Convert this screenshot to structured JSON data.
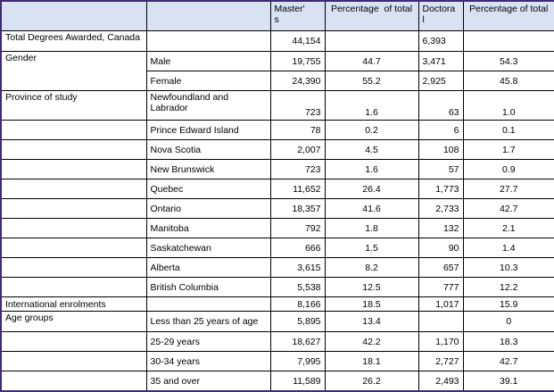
{
  "header": {
    "masters": "Master'\ns",
    "pct1": "Percentage  of total",
    "doctoral": "Doctora\nl",
    "pct2": "Percentage of total"
  },
  "rows": {
    "total": {
      "label": "Total Degrees Awarded, Canada",
      "masters": "44,154",
      "doctoral": "6,393"
    },
    "gender": {
      "label": "Gender"
    },
    "male": {
      "sub": "Male",
      "m": "19,755",
      "mp": "44.7",
      "d": "3,471",
      "dp": "54.3"
    },
    "female": {
      "sub": "Female",
      "m": "24,390",
      "mp": "55.2",
      "d": "2,925",
      "dp": "45.8"
    },
    "province": {
      "label": "Province of study"
    },
    "nl": {
      "sub": "Newfoundland and Labrador",
      "m": "723",
      "mp": "1.6",
      "d": "63",
      "dp": "1.0"
    },
    "pei": {
      "sub": "Prince Edward Island",
      "m": "78",
      "mp": "0.2",
      "d": "6",
      "dp": "0.1"
    },
    "ns": {
      "sub": "Nova Scotia",
      "m": "2,007",
      "mp": "4.5",
      "d": "108",
      "dp": "1.7"
    },
    "nb": {
      "sub": "New Brunswick",
      "m": "723",
      "mp": "1.6",
      "d": "57",
      "dp": "0.9"
    },
    "qc": {
      "sub": "Quebec",
      "m": "11,652",
      "mp": "26.4",
      "d": "1,773",
      "dp": "27.7"
    },
    "on": {
      "sub": "Ontario",
      "m": "18,357",
      "mp": "41.6",
      "d": "2,733",
      "dp": "42.7"
    },
    "mb": {
      "sub": "Manitoba",
      "m": "792",
      "mp": "1.8",
      "d": "132",
      "dp": "2.1"
    },
    "sk": {
      "sub": "Saskatchewan",
      "m": "666",
      "mp": "1.5",
      "d": "90",
      "dp": "1.4"
    },
    "ab": {
      "sub": "Alberta",
      "m": "3,615",
      "mp": "8.2",
      "d": "657",
      "dp": "10.3"
    },
    "bc": {
      "sub": "British Columbia",
      "m": "5,538",
      "mp": "12.5",
      "d": "777",
      "dp": "12.2"
    },
    "intl": {
      "label": "International enrolments",
      "m": "8,166",
      "mp": "18.5",
      "d": "1,017",
      "dp": "15.9"
    },
    "age": {
      "label": "Age groups"
    },
    "lt25": {
      "sub": "Less than 25 years of age",
      "m": "5,895",
      "mp": "13.4",
      "d": "",
      "dp": "0"
    },
    "a2529": {
      "sub": "25-29 years",
      "m": "18,627",
      "mp": "42.2",
      "d": "1,170",
      "dp": "18.3"
    },
    "a3034": {
      "sub": "30-34 years",
      "m": "7,995",
      "mp": "18.1",
      "d": "2,727",
      "dp": "42.7"
    },
    "a35": {
      "sub": "35 and over",
      "m": "11,589",
      "mp": "26.2",
      "d": "2,493",
      "dp": "39.1"
    }
  }
}
